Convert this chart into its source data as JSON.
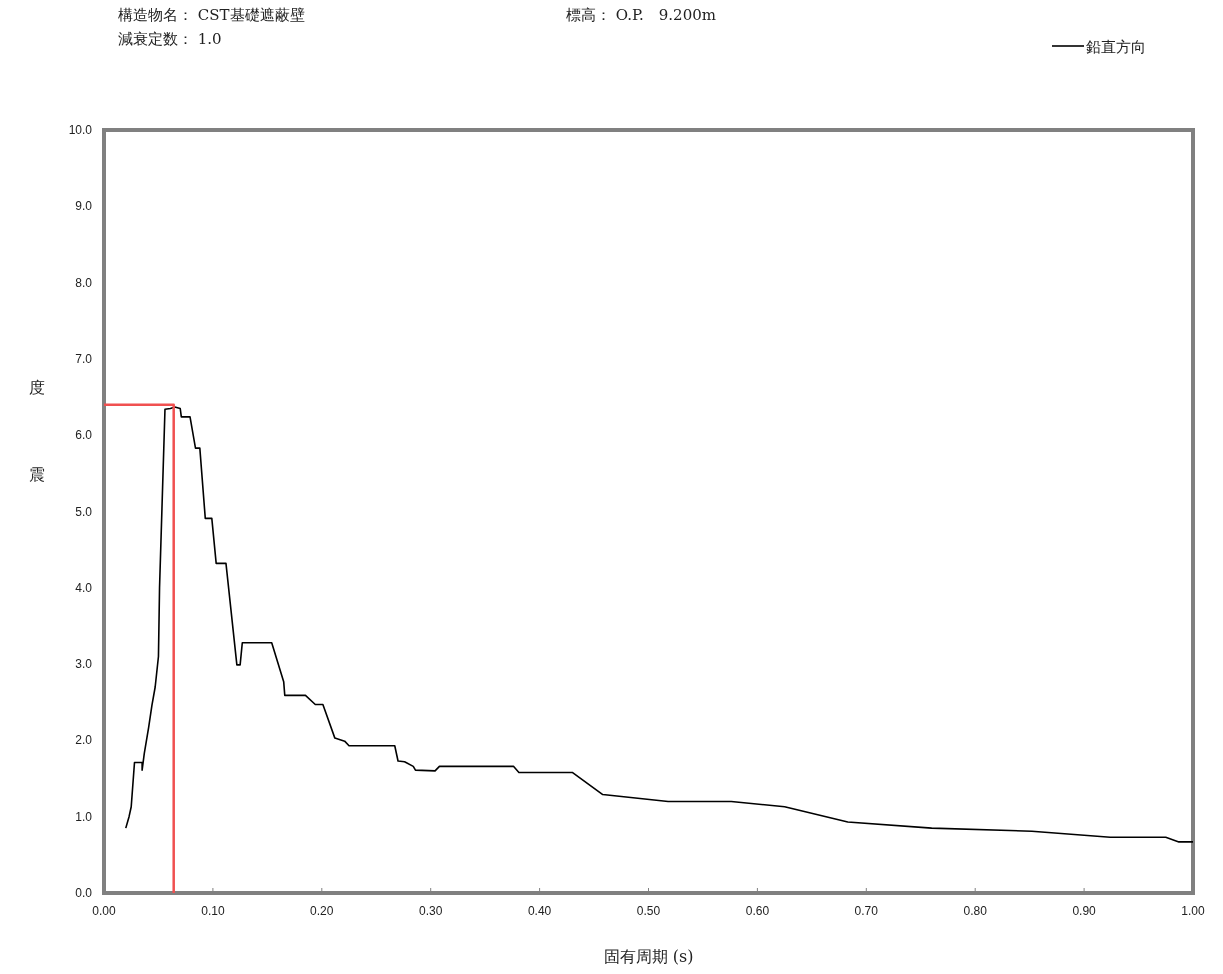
{
  "chart_data": {
    "type": "line",
    "title": "構造物名： CST基礎遮蔽壁",
    "subtitle": "減衰定数： 1.0",
    "annotations": [
      "標高： O.P.　9.200m"
    ],
    "xlabel": "固有周期 (s)",
    "ylabel": "震度",
    "xlim": [
      0,
      1
    ],
    "ylim": [
      0,
      10
    ],
    "xticks": [
      {
        "value": 0,
        "label": "0.00"
      },
      {
        "value": 0.1,
        "label": "0.10"
      },
      {
        "value": 0.2,
        "label": "0.20"
      },
      {
        "value": 0.3,
        "label": "0.30"
      },
      {
        "value": 0.4,
        "label": "0.40"
      },
      {
        "value": 0.5,
        "label": "0.50"
      },
      {
        "value": 0.6,
        "label": "0.60"
      },
      {
        "value": 0.7,
        "label": "0.70"
      },
      {
        "value": 0.8,
        "label": "0.80"
      },
      {
        "value": 0.9,
        "label": "0.90"
      },
      {
        "value": 1,
        "label": "1.00"
      }
    ],
    "yticks": [
      {
        "value": 0,
        "label": "0.0"
      },
      {
        "value": 1,
        "label": "1.0"
      },
      {
        "value": 2,
        "label": "2.0"
      },
      {
        "value": 3,
        "label": "3.0"
      },
      {
        "value": 4,
        "label": "4.0"
      },
      {
        "value": 5,
        "label": "5.0"
      },
      {
        "value": 6,
        "label": "6.0"
      },
      {
        "value": 7,
        "label": "7.0"
      },
      {
        "value": 8,
        "label": "8.0"
      },
      {
        "value": 9,
        "label": "9.0"
      },
      {
        "value": 10,
        "label": "10.0"
      }
    ],
    "legend": "top right",
    "series": [
      {
        "name": "鉛直方向",
        "color": "#000000",
        "x": [
          0.02,
          0.023,
          0.025,
          0.028,
          0.035,
          0.035,
          0.037,
          0.041,
          0.044,
          0.047,
          0.05,
          0.051,
          0.056,
          0.061,
          0.065,
          0.07,
          0.071,
          0.079,
          0.084,
          0.088,
          0.093,
          0.099,
          0.103,
          0.112,
          0.122,
          0.125,
          0.127,
          0.154,
          0.165,
          0.166,
          0.185,
          0.194,
          0.201,
          0.212,
          0.221,
          0.225,
          0.267,
          0.27,
          0.276,
          0.284,
          0.286,
          0.304,
          0.308,
          0.376,
          0.381,
          0.43,
          0.458,
          0.518,
          0.576,
          0.625,
          0.683,
          0.76,
          0.852,
          0.924,
          0.975,
          0.987,
          1.0
        ],
        "values": [
          0.85,
          1.0,
          1.13,
          1.71,
          1.71,
          1.61,
          1.83,
          2.17,
          2.46,
          2.7,
          3.1,
          4.0,
          6.34,
          6.35,
          6.37,
          6.35,
          6.24,
          6.24,
          5.83,
          5.83,
          4.91,
          4.91,
          4.32,
          4.32,
          2.99,
          2.99,
          3.28,
          3.28,
          2.77,
          2.59,
          2.59,
          2.47,
          2.47,
          2.03,
          1.99,
          1.93,
          1.93,
          1.73,
          1.72,
          1.66,
          1.61,
          1.6,
          1.66,
          1.66,
          1.58,
          1.58,
          1.29,
          1.2,
          1.2,
          1.13,
          0.93,
          0.85,
          0.81,
          0.73,
          0.73,
          0.67,
          0.67
        ]
      },
      {
        "color": "#f05050",
        "x": [
          0,
          0.064,
          0.064
        ],
        "values": [
          6.4,
          6.4,
          0
        ]
      }
    ]
  }
}
